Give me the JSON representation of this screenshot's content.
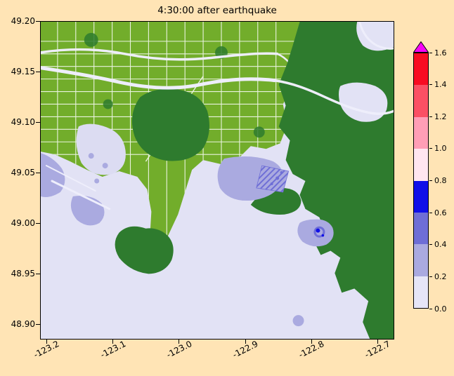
{
  "figure": {
    "title": "4:30:00 after earthquake"
  },
  "axes": {
    "x_tick_labels": [
      "-123.2",
      "-123.1",
      "-123.0",
      "-122.9",
      "-122.8",
      "-122.7"
    ],
    "y_tick_labels": [
      "49.20",
      "49.15",
      "49.10",
      "49.05",
      "49.00",
      "48.95",
      "48.90"
    ],
    "x_range": [
      -123.21,
      -122.675
    ],
    "y_range": [
      48.885,
      49.2
    ]
  },
  "colorbar": {
    "tick_labels": [
      "0.0",
      "0.2",
      "0.4",
      "0.6",
      "0.8",
      "1.0",
      "1.2",
      "1.4",
      "1.6"
    ],
    "segment_colors": [
      "#e6e6f7",
      "#aaaae0",
      "#6e6ed6",
      "#0f0fe8",
      "#ffe6f0",
      "#ff9eb6",
      "#fb5064",
      "#f80c22"
    ],
    "over_color": "#f702f7"
  },
  "palette": {
    "figure_bg": "#ffe4b5",
    "water": "#e2e2f5",
    "pale": "#dcdcf2",
    "urban": "#72ad2b",
    "forest": "#2e7b2e",
    "flood1": "#aaaae0",
    "flood2": "#6e6ed6",
    "flood3": "#0f0fe8",
    "street": "#ffffff",
    "river": "#eeeefb"
  },
  "chart_data": {
    "type": "heatmap",
    "title": "4:30:00 after earthquake",
    "xlabel": "",
    "ylabel": "",
    "x_tick_values": [
      -123.2,
      -123.1,
      -123.0,
      -122.9,
      -122.8,
      -122.7
    ],
    "y_tick_values": [
      49.2,
      49.15,
      49.1,
      49.05,
      49.0,
      48.95,
      48.9
    ],
    "x_range": [
      -123.21,
      -122.675
    ],
    "y_range": [
      48.885,
      49.2
    ],
    "grid": false,
    "colorbar_levels": [
      0.0,
      0.2,
      0.4,
      0.6,
      0.8,
      1.0,
      1.2,
      1.4,
      1.6
    ],
    "colorbar_extend": "max",
    "colorbar_colors": [
      "#e6e6f7",
      "#aaaae0",
      "#6e6ed6",
      "#0f0fe8",
      "#ffe6f0",
      "#ff9eb6",
      "#fb5064",
      "#f80c22"
    ],
    "colorbar_over_color": "#f702f7",
    "features": [
      {
        "label": "flat lowland with white street grid",
        "color_key": "urban",
        "lon": [
          -123.21,
          -122.82
        ],
        "lat": [
          49.05,
          49.2
        ]
      },
      {
        "label": "forested upland covering east and southeast",
        "color_key": "forest",
        "lon": [
          -122.84,
          -122.675
        ],
        "lat": [
          48.885,
          49.2
        ]
      },
      {
        "label": "large dark-green bog patch inside lowland",
        "color_key": "forest",
        "lon": [
          -123.07,
          -122.96
        ],
        "lat": [
          49.06,
          49.13
        ]
      },
      {
        "label": "dark-green peninsula in bay",
        "color_key": "forest",
        "lon": [
          -123.09,
          -123.0
        ],
        "lat": [
          48.95,
          49.01
        ]
      },
      {
        "label": "large bay, bottom center (0.0-0.2 level)",
        "color_key": "water",
        "lon": [
          -123.09,
          -122.83
        ],
        "lat": [
          48.9,
          49.06
        ]
      },
      {
        "label": "white river channels crossing lowland to upper right",
        "color_key": "river",
        "lon": [
          -123.21,
          -122.68
        ],
        "lat": [
          49.1,
          49.17
        ]
      },
      {
        "label": "flooded patch 0.2-0.4 with hatching, center",
        "color_key": "flood1",
        "lon": [
          -122.94,
          -122.84
        ],
        "lat": [
          49.02,
          49.08
        ]
      },
      {
        "label": "flooded coastal strip, west edge",
        "color_key": "flood1",
        "lon": [
          -123.21,
          -123.17
        ],
        "lat": [
          49.02,
          49.08
        ]
      },
      {
        "label": "deep flooding spot 0.6-0.8 in small harbor, lower right",
        "color_key": "flood3",
        "lon": [
          -122.79,
          -122.77
        ],
        "lat": [
          48.98,
          49.0
        ]
      },
      {
        "label": "small bay at bottom right (0.0-0.2 level)",
        "color_key": "water",
        "lon": [
          -122.8,
          -122.73
        ],
        "lat": [
          48.885,
          48.93
        ]
      }
    ]
  }
}
